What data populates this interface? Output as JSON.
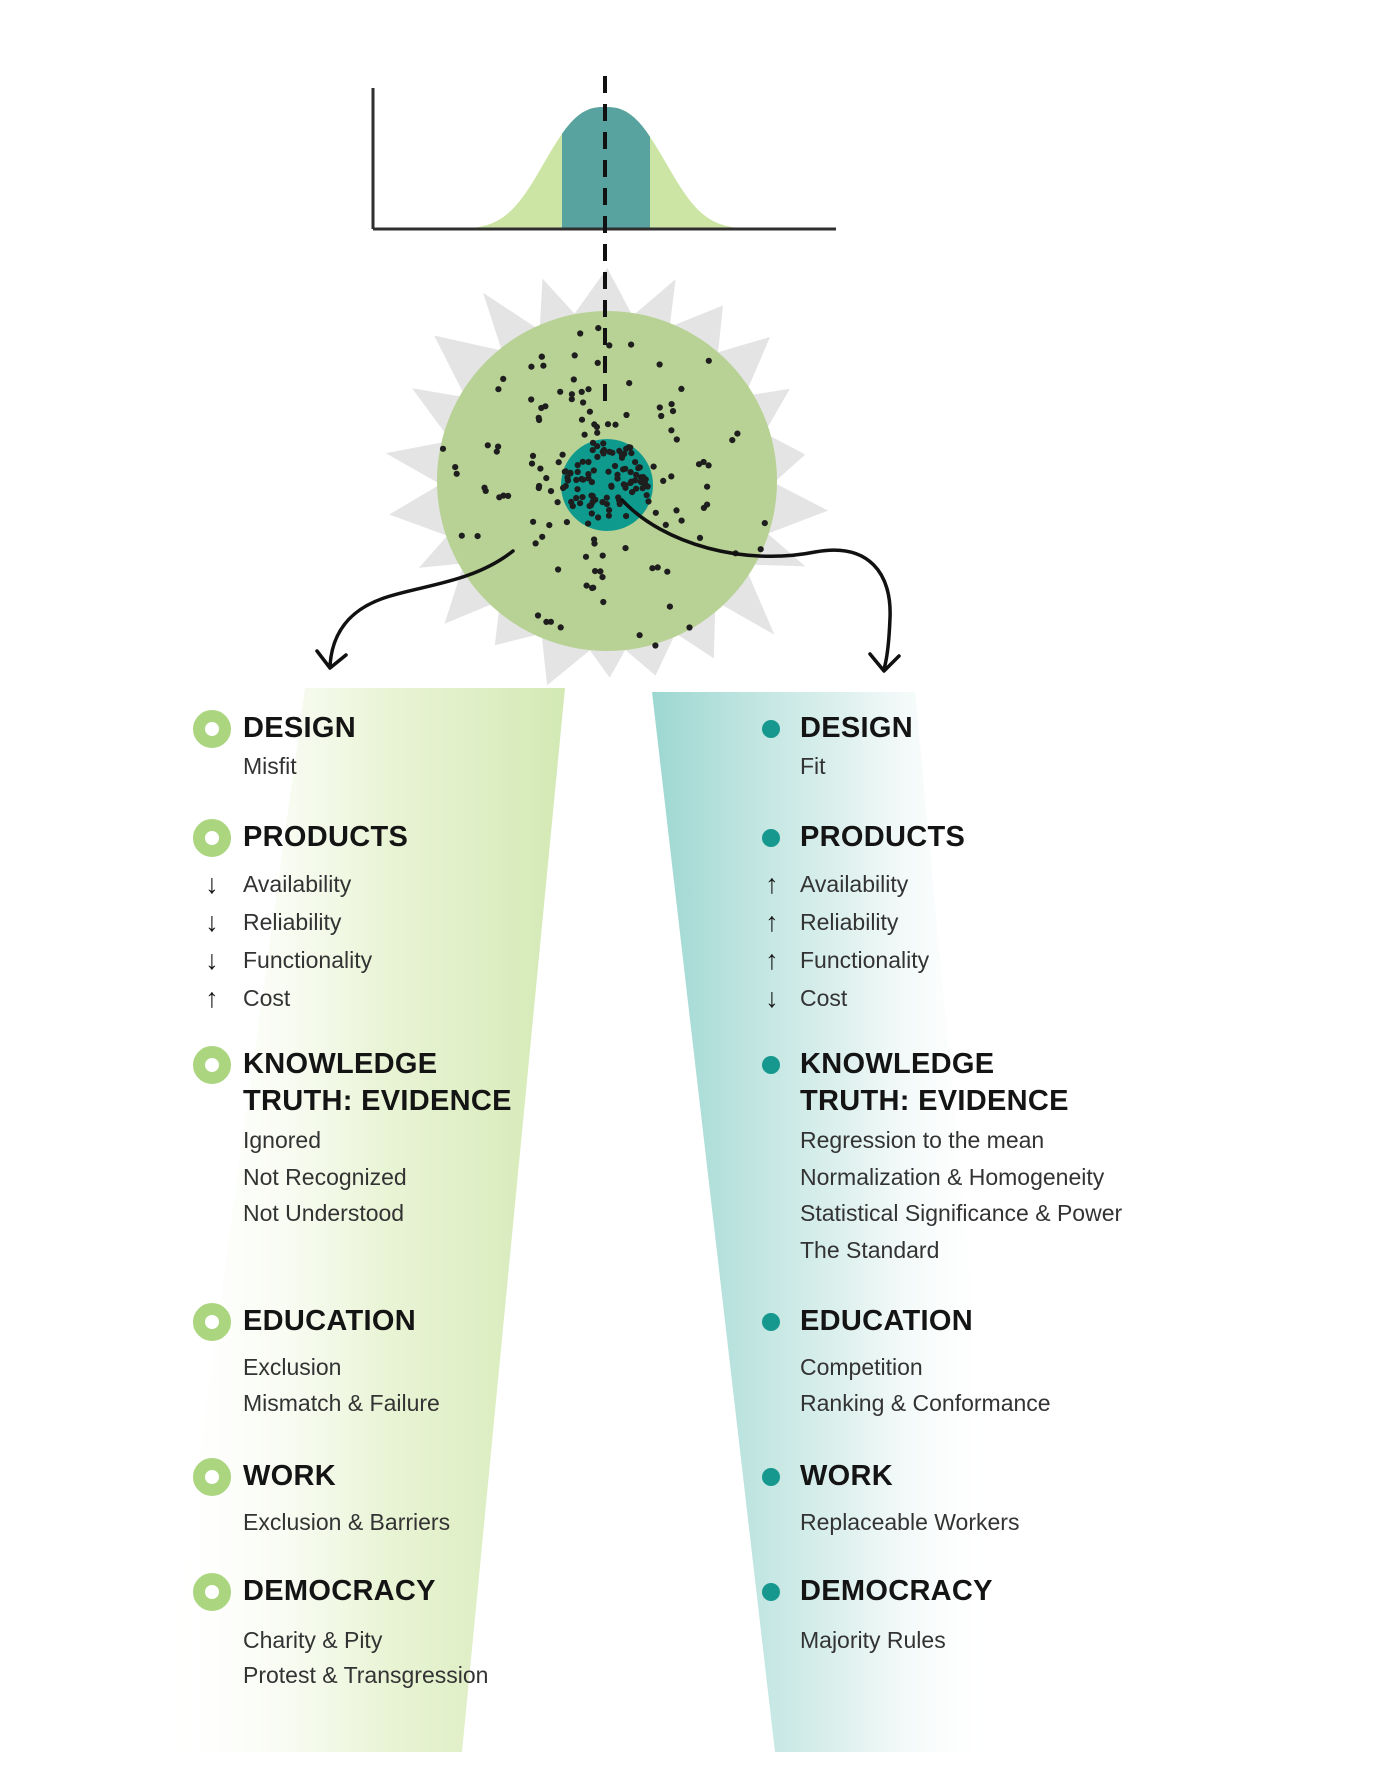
{
  "figure": {
    "description": "Normal distribution bell curve above a scatter-dot population circle, branching into two gradient panels",
    "bell_chart": {
      "type": "area",
      "shape": "gaussian bell curve on x/y axes",
      "fill_main": "#cde5a4",
      "fill_center_band": "#58a2a0",
      "mean_line_style": "dashed"
    },
    "scatter": {
      "population_circle_color": "#b8d194",
      "core_cluster_color": "#0f9a8e",
      "starburst_color": "#e4e4e4",
      "dot_color": "#1e1e1e",
      "dot_counts": {
        "core": 95,
        "mid": 72,
        "outer": 42
      }
    },
    "arrows": {
      "left": "branch to misfit column",
      "right": "branch to fit column"
    }
  },
  "colors": {
    "left_panel_green": "#d3e9b4",
    "right_panel_teal": "#9cd7d1",
    "left_bullet_green": "#abd57f",
    "right_bullet_teal": "#17988e",
    "axis_black": "#2f2f2f",
    "header_text": "#141414",
    "item_text": "#333333"
  },
  "columns": [
    {
      "id": "left",
      "bullet_style": "donut",
      "bullet_color": "#abd57f",
      "sections": [
        {
          "title": "DESIGN",
          "items": [
            {
              "text": "Misfit"
            }
          ]
        },
        {
          "title": "PRODUCTS",
          "items": [
            {
              "text": "Availability",
              "arrow": "down"
            },
            {
              "text": "Reliability",
              "arrow": "down"
            },
            {
              "text": "Functionality",
              "arrow": "down"
            },
            {
              "text": "Cost",
              "arrow": "up"
            }
          ]
        },
        {
          "title": "KNOWLEDGE",
          "title_line2": "TRUTH: EVIDENCE",
          "items": [
            {
              "text": "Ignored"
            },
            {
              "text": "Not Recognized"
            },
            {
              "text": "Not Understood"
            }
          ]
        },
        {
          "title": "EDUCATION",
          "items": [
            {
              "text": "Exclusion"
            },
            {
              "text": "Mismatch & Failure"
            }
          ]
        },
        {
          "title": "WORK",
          "items": [
            {
              "text": "Exclusion & Barriers"
            }
          ]
        },
        {
          "title": "DEMOCRACY",
          "items": [
            {
              "text": "Charity & Pity"
            },
            {
              "text": "Protest & Transgression"
            }
          ]
        }
      ]
    },
    {
      "id": "right",
      "bullet_style": "dot",
      "bullet_color": "#17988e",
      "sections": [
        {
          "title": "DESIGN",
          "items": [
            {
              "text": "Fit"
            }
          ]
        },
        {
          "title": "PRODUCTS",
          "items": [
            {
              "text": "Availability",
              "arrow": "up"
            },
            {
              "text": "Reliability",
              "arrow": "up"
            },
            {
              "text": "Functionality",
              "arrow": "up"
            },
            {
              "text": "Cost",
              "arrow": "down"
            }
          ]
        },
        {
          "title": "KNOWLEDGE",
          "title_line2": "TRUTH: EVIDENCE",
          "items": [
            {
              "text": "Regression to the mean"
            },
            {
              "text": "Normalization & Homogeneity"
            },
            {
              "text": "Statistical Significance & Power"
            },
            {
              "text": "The Standard"
            }
          ]
        },
        {
          "title": "EDUCATION",
          "items": [
            {
              "text": "Competition"
            },
            {
              "text": "Ranking & Conformance"
            }
          ]
        },
        {
          "title": "WORK",
          "items": [
            {
              "text": "Replaceable Workers"
            }
          ]
        },
        {
          "title": "DEMOCRACY",
          "items": [
            {
              "text": "Majority Rules"
            }
          ]
        }
      ]
    }
  ],
  "arrow_glyphs": {
    "up": "↑",
    "down": "↓"
  }
}
